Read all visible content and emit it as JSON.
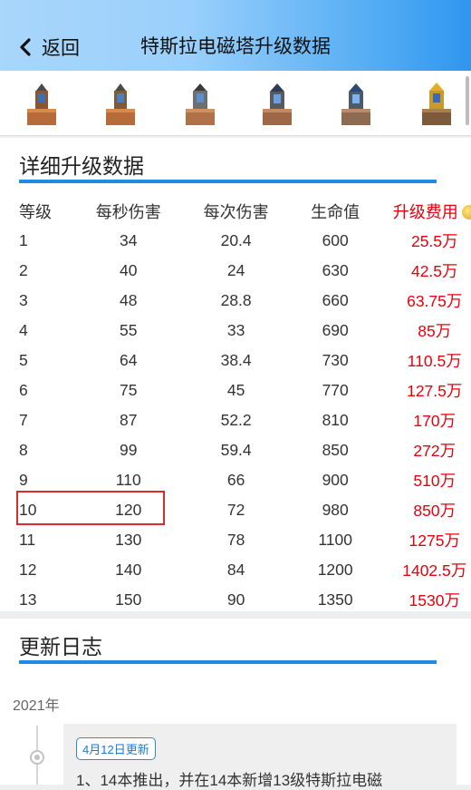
{
  "header": {
    "back_label": "返回",
    "title": "特斯拉电磁塔升级数据"
  },
  "tower_strip": {
    "items": [
      "tower-level-icon",
      "tower-level-icon",
      "tower-level-icon",
      "tower-level-icon",
      "tower-level-icon",
      "tower-level-icon"
    ]
  },
  "upgrade": {
    "section_title": "详细升级数据",
    "columns": [
      "等级",
      "每秒伤害",
      "每次伤害",
      "生命值",
      "升级费用"
    ],
    "rows": [
      [
        "1",
        "34",
        "20.4",
        "600",
        "25.5万"
      ],
      [
        "2",
        "40",
        "24",
        "630",
        "42.5万"
      ],
      [
        "3",
        "48",
        "28.8",
        "660",
        "63.75万"
      ],
      [
        "4",
        "55",
        "33",
        "690",
        "85万"
      ],
      [
        "5",
        "64",
        "38.4",
        "730",
        "110.5万"
      ],
      [
        "6",
        "75",
        "45",
        "770",
        "127.5万"
      ],
      [
        "7",
        "87",
        "52.2",
        "810",
        "170万"
      ],
      [
        "8",
        "99",
        "59.4",
        "850",
        "272万"
      ],
      [
        "9",
        "110",
        "66",
        "900",
        "510万"
      ],
      [
        "10",
        "120",
        "72",
        "980",
        "850万"
      ],
      [
        "11",
        "130",
        "78",
        "1100",
        "1275万"
      ],
      [
        "12",
        "140",
        "84",
        "1200",
        "1402.5万"
      ],
      [
        "13",
        "150",
        "90",
        "1350",
        "1530万"
      ]
    ],
    "highlighted_row": "10",
    "colors": {
      "cost": "#e8000b",
      "accent": "#1e8be6",
      "highlight": "#dd2b2b"
    }
  },
  "changelog": {
    "section_title": "更新日志",
    "year": "2021年",
    "entries": [
      {
        "badge": "4月12日更新",
        "text": "1、14本推出，并在14本新增13级特斯拉电磁"
      }
    ]
  }
}
